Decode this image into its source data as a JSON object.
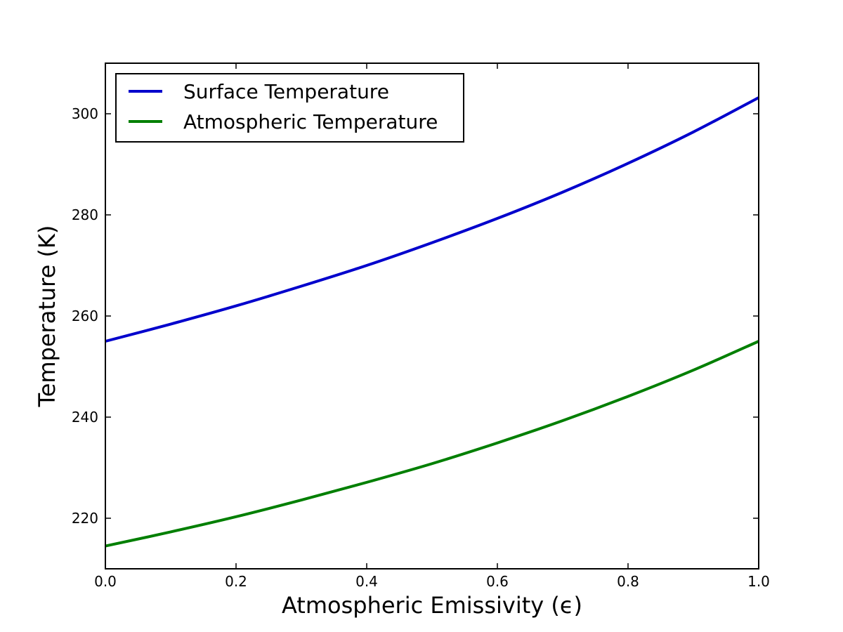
{
  "chart_data": {
    "type": "line",
    "xlabel": "Atmospheric Emissivity (ϵ)",
    "ylabel": "Temperature (K)",
    "xlim": [
      0.0,
      1.0
    ],
    "ylim": [
      210,
      310
    ],
    "x_ticks": [
      0.0,
      0.2,
      0.4,
      0.6,
      0.8,
      1.0
    ],
    "x_tick_labels": [
      "0.0",
      "0.2",
      "0.4",
      "0.6",
      "0.8",
      "1.0"
    ],
    "y_ticks": [
      220,
      240,
      260,
      280,
      300
    ],
    "y_tick_labels": [
      "220",
      "240",
      "260",
      "280",
      "300"
    ],
    "grid": false,
    "legend_position": "top-left",
    "x": [
      0.0,
      0.1,
      0.2,
      0.3,
      0.4,
      0.5,
      0.6,
      0.7,
      0.8,
      0.9,
      1.0
    ],
    "series": [
      {
        "name": "Surface Temperature",
        "color": "#0000cc",
        "values": [
          255.0,
          258.4,
          262.0,
          265.9,
          270.0,
          274.5,
          279.3,
          284.5,
          290.2,
          296.4,
          303.2
        ]
      },
      {
        "name": "Atmospheric Temperature",
        "color": "#007f00",
        "values": [
          214.5,
          217.3,
          220.3,
          223.6,
          227.1,
          230.8,
          234.9,
          239.3,
          244.1,
          249.3,
          255.0
        ]
      }
    ]
  }
}
